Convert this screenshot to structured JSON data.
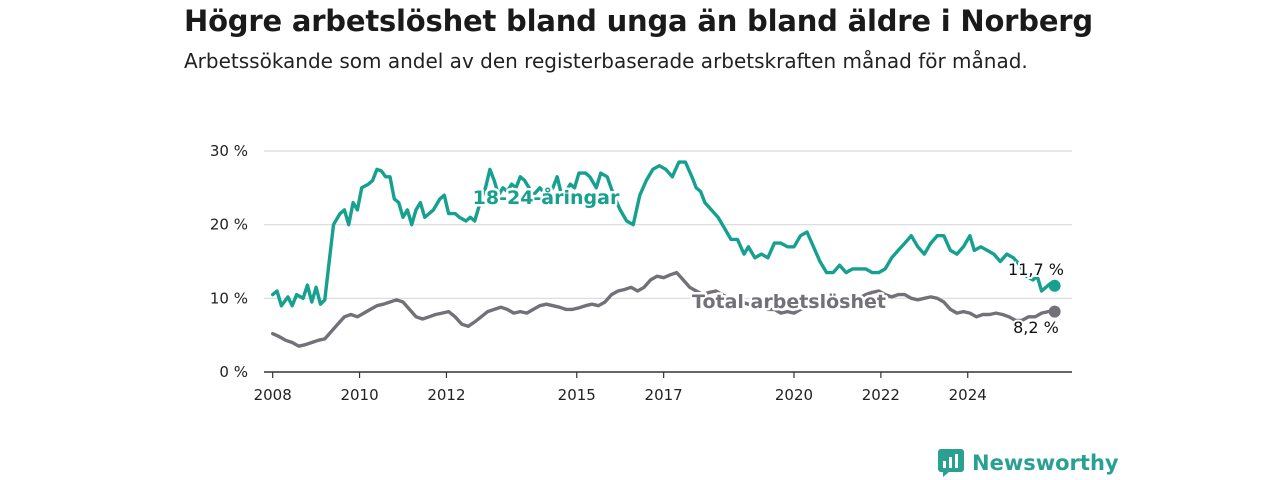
{
  "title": "Högre arbetslöshet bland unga än bland äldre i Norberg",
  "subtitle": "Arbetssökande som andel av den registerbaserade arbetskraften månad för månad.",
  "brand": {
    "name": "Newsworthy",
    "icon": "newsworthy-logo-icon"
  },
  "colors": {
    "youth": "#15a08f",
    "total": "#737078",
    "grid": "#d9d9d9",
    "axis": "#333333"
  },
  "chart_data": {
    "type": "line",
    "title": "Högre arbetslöshet bland unga än bland äldre i Norberg",
    "subtitle": "Arbetssökande som andel av den registerbaserade arbetskraften månad för månad.",
    "xlabel": "",
    "ylabel": "",
    "xlim": [
      2007.8,
      2026.4
    ],
    "ylim": [
      0,
      30
    ],
    "y_ticks": [
      0,
      10,
      20,
      30
    ],
    "y_tick_labels": [
      "0 %",
      "10 %",
      "20 %",
      "30 %"
    ],
    "x_ticks": [
      2008,
      2010,
      2012,
      2015,
      2017,
      2020,
      2022,
      2024
    ],
    "x_tick_labels": [
      "2008",
      "2010",
      "2012",
      "2015",
      "2017",
      "2020",
      "2022",
      "2024"
    ],
    "grid": true,
    "series": [
      {
        "name": "18-24-åringar",
        "end_label": "11,7 %",
        "points": [
          [
            2008.0,
            10.5
          ],
          [
            2008.1,
            11.0
          ],
          [
            2008.2,
            9.0
          ],
          [
            2008.35,
            10.2
          ],
          [
            2008.45,
            9.0
          ],
          [
            2008.55,
            10.5
          ],
          [
            2008.7,
            10.0
          ],
          [
            2008.8,
            11.8
          ],
          [
            2008.9,
            9.5
          ],
          [
            2009.0,
            11.5
          ],
          [
            2009.1,
            9.2
          ],
          [
            2009.2,
            9.8
          ],
          [
            2009.3,
            15.0
          ],
          [
            2009.4,
            20.0
          ],
          [
            2009.55,
            21.5
          ],
          [
            2009.65,
            22.0
          ],
          [
            2009.75,
            20.0
          ],
          [
            2009.85,
            23.0
          ],
          [
            2009.95,
            22.0
          ],
          [
            2010.05,
            25.0
          ],
          [
            2010.2,
            25.5
          ],
          [
            2010.3,
            26.0
          ],
          [
            2010.4,
            27.5
          ],
          [
            2010.5,
            27.3
          ],
          [
            2010.6,
            26.5
          ],
          [
            2010.7,
            26.5
          ],
          [
            2010.8,
            23.5
          ],
          [
            2010.9,
            23.0
          ],
          [
            2011.0,
            21.0
          ],
          [
            2011.1,
            22.0
          ],
          [
            2011.2,
            20.0
          ],
          [
            2011.3,
            22.0
          ],
          [
            2011.4,
            23.0
          ],
          [
            2011.5,
            21.0
          ],
          [
            2011.6,
            21.5
          ],
          [
            2011.7,
            22.0
          ],
          [
            2011.85,
            23.5
          ],
          [
            2011.95,
            24.0
          ],
          [
            2012.05,
            21.5
          ],
          [
            2012.2,
            21.5
          ],
          [
            2012.3,
            21.0
          ],
          [
            2012.45,
            20.5
          ],
          [
            2012.55,
            21.0
          ],
          [
            2012.65,
            20.5
          ],
          [
            2012.8,
            23.5
          ],
          [
            2012.9,
            25.0
          ],
          [
            2013.0,
            27.5
          ],
          [
            2013.1,
            26.0
          ],
          [
            2013.2,
            24.0
          ],
          [
            2013.3,
            25.0
          ],
          [
            2013.4,
            24.5
          ],
          [
            2013.5,
            25.5
          ],
          [
            2013.6,
            25.0
          ],
          [
            2013.7,
            26.5
          ],
          [
            2013.8,
            26.0
          ],
          [
            2013.9,
            25.0
          ],
          [
            2014.0,
            24.0
          ],
          [
            2014.15,
            25.0
          ],
          [
            2014.3,
            24.0
          ],
          [
            2014.45,
            25.0
          ],
          [
            2014.55,
            26.5
          ],
          [
            2014.65,
            24.0
          ],
          [
            2014.75,
            24.5
          ],
          [
            2014.85,
            25.5
          ],
          [
            2014.95,
            25.0
          ],
          [
            2015.05,
            27.0
          ],
          [
            2015.2,
            27.0
          ],
          [
            2015.3,
            26.5
          ],
          [
            2015.45,
            25.0
          ],
          [
            2015.55,
            27.0
          ],
          [
            2015.7,
            26.5
          ],
          [
            2015.85,
            24.0
          ],
          [
            2016.0,
            22.0
          ],
          [
            2016.15,
            20.5
          ],
          [
            2016.3,
            20.0
          ],
          [
            2016.45,
            24.0
          ],
          [
            2016.6,
            26.0
          ],
          [
            2016.75,
            27.5
          ],
          [
            2016.9,
            28.0
          ],
          [
            2017.05,
            27.5
          ],
          [
            2017.2,
            26.5
          ],
          [
            2017.35,
            28.5
          ],
          [
            2017.5,
            28.5
          ],
          [
            2017.65,
            26.5
          ],
          [
            2017.75,
            25.0
          ],
          [
            2017.85,
            24.5
          ],
          [
            2017.95,
            23.0
          ],
          [
            2018.1,
            22.0
          ],
          [
            2018.25,
            21.0
          ],
          [
            2018.4,
            19.5
          ],
          [
            2018.55,
            18.0
          ],
          [
            2018.7,
            18.0
          ],
          [
            2018.85,
            16.0
          ],
          [
            2018.95,
            17.0
          ],
          [
            2019.1,
            15.5
          ],
          [
            2019.25,
            16.0
          ],
          [
            2019.4,
            15.5
          ],
          [
            2019.55,
            17.5
          ],
          [
            2019.7,
            17.5
          ],
          [
            2019.85,
            17.0
          ],
          [
            2020.0,
            17.0
          ],
          [
            2020.15,
            18.5
          ],
          [
            2020.3,
            19.0
          ],
          [
            2020.45,
            17.0
          ],
          [
            2020.6,
            15.0
          ],
          [
            2020.75,
            13.5
          ],
          [
            2020.9,
            13.5
          ],
          [
            2021.05,
            14.5
          ],
          [
            2021.2,
            13.5
          ],
          [
            2021.35,
            14.0
          ],
          [
            2021.5,
            14.0
          ],
          [
            2021.65,
            14.0
          ],
          [
            2021.8,
            13.5
          ],
          [
            2021.95,
            13.5
          ],
          [
            2022.1,
            14.0
          ],
          [
            2022.25,
            15.5
          ],
          [
            2022.4,
            16.5
          ],
          [
            2022.55,
            17.5
          ],
          [
            2022.7,
            18.5
          ],
          [
            2022.85,
            17.0
          ],
          [
            2023.0,
            16.0
          ],
          [
            2023.15,
            17.5
          ],
          [
            2023.3,
            18.5
          ],
          [
            2023.45,
            18.5
          ],
          [
            2023.6,
            16.5
          ],
          [
            2023.75,
            16.0
          ],
          [
            2023.9,
            17.0
          ],
          [
            2024.05,
            18.5
          ],
          [
            2024.15,
            16.5
          ],
          [
            2024.3,
            17.0
          ],
          [
            2024.45,
            16.5
          ],
          [
            2024.6,
            16.0
          ],
          [
            2024.75,
            15.0
          ],
          [
            2024.9,
            16.0
          ],
          [
            2025.05,
            15.5
          ],
          [
            2025.2,
            14.5
          ],
          [
            2025.35,
            13.0
          ],
          [
            2025.5,
            12.5
          ],
          [
            2025.6,
            13.0
          ],
          [
            2025.7,
            11.0
          ],
          [
            2025.8,
            11.5
          ],
          [
            2025.9,
            12.0
          ],
          [
            2026.0,
            11.7
          ]
        ]
      },
      {
        "name": "Total arbetslöshet",
        "end_label": "8,2 %",
        "points": [
          [
            2008.0,
            5.2
          ],
          [
            2008.15,
            4.8
          ],
          [
            2008.3,
            4.3
          ],
          [
            2008.45,
            4.0
          ],
          [
            2008.6,
            3.5
          ],
          [
            2008.75,
            3.7
          ],
          [
            2008.9,
            4.0
          ],
          [
            2009.05,
            4.3
          ],
          [
            2009.2,
            4.5
          ],
          [
            2009.35,
            5.5
          ],
          [
            2009.5,
            6.5
          ],
          [
            2009.65,
            7.5
          ],
          [
            2009.8,
            7.8
          ],
          [
            2009.95,
            7.5
          ],
          [
            2010.1,
            8.0
          ],
          [
            2010.25,
            8.5
          ],
          [
            2010.4,
            9.0
          ],
          [
            2010.55,
            9.2
          ],
          [
            2010.7,
            9.5
          ],
          [
            2010.85,
            9.8
          ],
          [
            2011.0,
            9.5
          ],
          [
            2011.15,
            8.5
          ],
          [
            2011.3,
            7.5
          ],
          [
            2011.45,
            7.2
          ],
          [
            2011.6,
            7.5
          ],
          [
            2011.75,
            7.8
          ],
          [
            2011.9,
            8.0
          ],
          [
            2012.05,
            8.2
          ],
          [
            2012.2,
            7.5
          ],
          [
            2012.35,
            6.5
          ],
          [
            2012.5,
            6.2
          ],
          [
            2012.65,
            6.8
          ],
          [
            2012.8,
            7.5
          ],
          [
            2012.95,
            8.2
          ],
          [
            2013.1,
            8.5
          ],
          [
            2013.25,
            8.8
          ],
          [
            2013.4,
            8.5
          ],
          [
            2013.55,
            8.0
          ],
          [
            2013.7,
            8.2
          ],
          [
            2013.85,
            8.0
          ],
          [
            2014.0,
            8.5
          ],
          [
            2014.15,
            9.0
          ],
          [
            2014.3,
            9.2
          ],
          [
            2014.45,
            9.0
          ],
          [
            2014.6,
            8.8
          ],
          [
            2014.75,
            8.5
          ],
          [
            2014.9,
            8.5
          ],
          [
            2015.05,
            8.7
          ],
          [
            2015.2,
            9.0
          ],
          [
            2015.35,
            9.2
          ],
          [
            2015.5,
            9.0
          ],
          [
            2015.65,
            9.5
          ],
          [
            2015.8,
            10.5
          ],
          [
            2015.95,
            11.0
          ],
          [
            2016.1,
            11.2
          ],
          [
            2016.25,
            11.5
          ],
          [
            2016.4,
            11.0
          ],
          [
            2016.55,
            11.5
          ],
          [
            2016.7,
            12.5
          ],
          [
            2016.85,
            13.0
          ],
          [
            2017.0,
            12.8
          ],
          [
            2017.15,
            13.2
          ],
          [
            2017.3,
            13.5
          ],
          [
            2017.45,
            12.5
          ],
          [
            2017.6,
            11.5
          ],
          [
            2017.75,
            11.0
          ],
          [
            2017.9,
            10.5
          ],
          [
            2018.05,
            10.8
          ],
          [
            2018.2,
            11.0
          ],
          [
            2018.35,
            10.5
          ],
          [
            2018.5,
            10.0
          ],
          [
            2018.65,
            9.8
          ],
          [
            2018.8,
            9.5
          ],
          [
            2018.95,
            9.2
          ],
          [
            2019.1,
            9.0
          ],
          [
            2019.25,
            8.8
          ],
          [
            2019.4,
            8.5
          ],
          [
            2019.55,
            8.5
          ],
          [
            2019.7,
            8.0
          ],
          [
            2019.85,
            8.2
          ],
          [
            2020.0,
            8.0
          ],
          [
            2020.15,
            8.5
          ],
          [
            2020.3,
            8.8
          ],
          [
            2020.45,
            9.0
          ],
          [
            2020.6,
            9.0
          ],
          [
            2020.75,
            9.0
          ],
          [
            2020.9,
            9.2
          ],
          [
            2021.05,
            9.5
          ],
          [
            2021.2,
            9.5
          ],
          [
            2021.35,
            9.8
          ],
          [
            2021.5,
            10.0
          ],
          [
            2021.65,
            10.5
          ],
          [
            2021.8,
            10.8
          ],
          [
            2021.95,
            11.0
          ],
          [
            2022.1,
            10.5
          ],
          [
            2022.25,
            10.2
          ],
          [
            2022.4,
            10.5
          ],
          [
            2022.55,
            10.5
          ],
          [
            2022.7,
            10.0
          ],
          [
            2022.85,
            9.8
          ],
          [
            2023.0,
            10.0
          ],
          [
            2023.15,
            10.2
          ],
          [
            2023.3,
            10.0
          ],
          [
            2023.45,
            9.5
          ],
          [
            2023.6,
            8.5
          ],
          [
            2023.75,
            8.0
          ],
          [
            2023.9,
            8.2
          ],
          [
            2024.05,
            8.0
          ],
          [
            2024.2,
            7.5
          ],
          [
            2024.35,
            7.8
          ],
          [
            2024.5,
            7.8
          ],
          [
            2024.65,
            8.0
          ],
          [
            2024.8,
            7.8
          ],
          [
            2024.95,
            7.5
          ],
          [
            2025.1,
            7.0
          ],
          [
            2025.25,
            7.0
          ],
          [
            2025.4,
            7.5
          ],
          [
            2025.55,
            7.5
          ],
          [
            2025.7,
            8.0
          ],
          [
            2025.85,
            8.2
          ],
          [
            2026.0,
            8.2
          ]
        ]
      }
    ],
    "annotations": [
      "18-24-åringar",
      "Total arbetslöshet",
      "11,7 %",
      "8,2 %"
    ]
  }
}
